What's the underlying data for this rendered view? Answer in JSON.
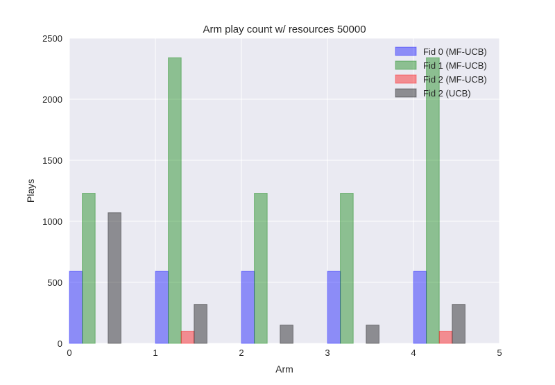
{
  "chart_data": {
    "type": "bar",
    "title": "Arm play count w/ resources 50000",
    "xlabel": "Arm",
    "ylabel": "Plays",
    "xlim": [
      0,
      5
    ],
    "ylim": [
      0,
      2500
    ],
    "xticks": [
      "0",
      "1",
      "2",
      "3",
      "4",
      "5"
    ],
    "yticks": [
      "0",
      "500",
      "1000",
      "1500",
      "2000",
      "2500"
    ],
    "grid": true,
    "legend_position": "top-right",
    "bar_width": 0.15,
    "series": [
      {
        "name": "Fid 0 (MF-UCB)",
        "color": "#0000ff",
        "x": [
          0,
          1,
          2,
          3,
          4
        ],
        "values": [
          590,
          590,
          590,
          590,
          590
        ]
      },
      {
        "name": "Fid 1 (MF-UCB)",
        "color": "#008000",
        "x": [
          0.15,
          1.15,
          2.15,
          3.15,
          4.15
        ],
        "values": [
          1230,
          2340,
          1230,
          1230,
          2340
        ]
      },
      {
        "name": "Fid 2 (MF-UCB)",
        "color": "#ff0000",
        "x": [
          0.3,
          1.3,
          2.3,
          3.3,
          4.3
        ],
        "values": [
          0,
          100,
          0,
          0,
          100
        ]
      },
      {
        "name": "Fid 2 (UCB)",
        "color": "#000000",
        "x": [
          0.45,
          1.45,
          2.45,
          3.45,
          4.45
        ],
        "values": [
          1070,
          320,
          150,
          150,
          320
        ]
      }
    ]
  }
}
